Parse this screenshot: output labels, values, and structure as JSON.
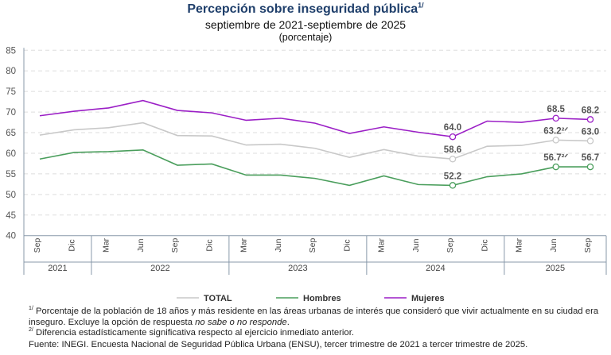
{
  "chart_data": {
    "type": "line",
    "title": "Percepción sobre inseguridad pública",
    "title_note": "1/",
    "subtitle": "septiembre de 2021-septiembre de 2025",
    "unit": "(porcentaje)",
    "ylim": [
      40,
      85
    ],
    "yticks": [
      40,
      45,
      50,
      55,
      60,
      65,
      70,
      75,
      80,
      85
    ],
    "grid": true,
    "legend_position": "bottom",
    "categories": [
      "Sep",
      "Dic",
      "Mar",
      "Jun",
      "Sep",
      "Dic",
      "Mar",
      "Jun",
      "Sep",
      "Dic",
      "Mar",
      "Jun",
      "Sep",
      "Dic",
      "Mar",
      "Jun",
      "Sep"
    ],
    "years": [
      {
        "label": "2021",
        "count": 2
      },
      {
        "label": "2022",
        "count": 4
      },
      {
        "label": "2023",
        "count": 4
      },
      {
        "label": "2024",
        "count": 4
      },
      {
        "label": "2025",
        "count": 3
      }
    ],
    "series": [
      {
        "name": "TOTAL",
        "color": "#c8c8c8",
        "values": [
          64.4,
          65.7,
          66.2,
          67.4,
          64.3,
          64.2,
          62.0,
          62.2,
          61.2,
          59.0,
          60.9,
          59.3,
          58.6,
          61.7,
          61.9,
          63.2,
          63.0
        ],
        "labels": [
          {
            "i": 12,
            "text": "58.6"
          },
          {
            "i": 15,
            "text": "63.2²ᐟ"
          },
          {
            "i": 16,
            "text": "63.0"
          }
        ]
      },
      {
        "name": "Hombres",
        "color": "#4a9e5c",
        "values": [
          58.6,
          60.2,
          60.4,
          60.8,
          57.1,
          57.4,
          54.7,
          54.7,
          53.9,
          52.2,
          54.5,
          52.4,
          52.2,
          54.3,
          55.0,
          56.7,
          56.7
        ],
        "labels": [
          {
            "i": 12,
            "text": "52.2"
          },
          {
            "i": 15,
            "text": "56.7²ᐟ"
          },
          {
            "i": 16,
            "text": "56.7"
          }
        ]
      },
      {
        "name": "Mujeres",
        "color": "#9b1fc6",
        "values": [
          69.1,
          70.2,
          71.0,
          72.8,
          70.4,
          69.8,
          68.0,
          68.5,
          67.3,
          64.8,
          66.4,
          65.1,
          64.0,
          67.8,
          67.5,
          68.5,
          68.2
        ],
        "labels": [
          {
            "i": 12,
            "text": "64.0"
          },
          {
            "i": 15,
            "text": "68.5"
          },
          {
            "i": 16,
            "text": "68.2"
          }
        ]
      }
    ]
  },
  "notes": {
    "n1_mark": "1/",
    "n1_text_a": "Porcentaje de la población de 18 años y más residente en las áreas urbanas de interés que consideró que vivir actualmente en su ciudad era inseguro. Excluye la opción de respuesta ",
    "n1_italic": "no sabe o no responde",
    "n1_end": ".",
    "n2_mark": "2/",
    "n2_text": "Diferencia estadísticamente significativa respecto al ejercicio inmediato anterior.",
    "source": "Fuente: INEGI. Encuesta Nacional de Seguridad Pública Urbana (ENSU), tercer trimestre de 2021 a tercer trimestre de 2025."
  }
}
